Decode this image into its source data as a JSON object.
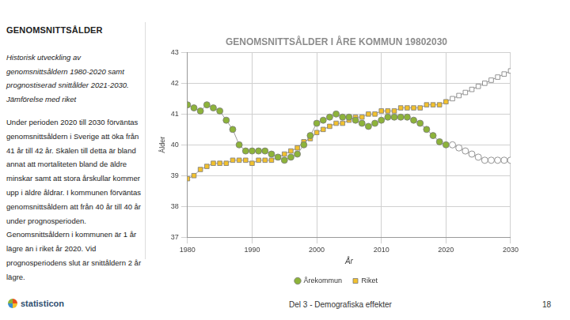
{
  "page": {
    "heading": "GENOMSNITTSÅLDER",
    "subtitle": "Historisk utveckling av genomsnittsåldern 1980-2020 samt prognostiserad snittålder 2021-2030. Jämförelse med riket",
    "body": "Under perioden 2020 till 2030 förväntas genomsnittsåldern i Sverige att öka från 41 år till 42 år. Skälen till detta är bland annat att mortaliteten bland de äldre minskar samt att stora årskullar kommer upp i äldre åldrar. I kommunen förväntas genomsnittsåldern att från 40 år till 40 år under prognosperioden. Genomsnittsåldern i kommunen är 1 år lägre än i riket år 2020. Vid prognosperiodens slut är snittåldern 2 år lägre.",
    "logo": "statisticon",
    "footer": "Del 3 - Demografiska effekter",
    "page_number": 18
  },
  "chart_data": {
    "type": "line",
    "title": "GENOMSNITTSÅLDER I ÅRE KOMMUN 19802030",
    "x_label": "År",
    "y_label": "Ålder",
    "x": [
      1980,
      1981,
      1982,
      1983,
      1984,
      1985,
      1986,
      1987,
      1988,
      1989,
      1990,
      1991,
      1992,
      1993,
      1994,
      1995,
      1996,
      1997,
      1998,
      1999,
      2000,
      2001,
      2002,
      2003,
      2004,
      2005,
      2006,
      2007,
      2008,
      2009,
      2010,
      2011,
      2012,
      2013,
      2014,
      2015,
      2016,
      2017,
      2018,
      2019,
      2020,
      2021,
      2022,
      2023,
      2024,
      2025,
      2026,
      2027,
      2028,
      2029,
      2030
    ],
    "series": [
      {
        "name": "Årekommun",
        "marker": "circle",
        "values": [
          41.3,
          41.2,
          41.1,
          41.3,
          41.2,
          41.1,
          40.8,
          40.5,
          40.0,
          39.8,
          39.8,
          39.8,
          39.8,
          39.7,
          39.6,
          39.5,
          39.6,
          39.7,
          40.0,
          40.3,
          40.7,
          40.8,
          40.9,
          41.0,
          40.9,
          40.9,
          40.8,
          40.7,
          40.6,
          40.7,
          40.8,
          40.9,
          40.9,
          40.9,
          40.9,
          40.8,
          40.7,
          40.5,
          40.3,
          40.1,
          40.0,
          40.0,
          39.9,
          39.8,
          39.7,
          39.6,
          39.5,
          39.5,
          39.5,
          39.5,
          39.5
        ],
        "colors": [
          "#8db33a",
          "#8db33a",
          "#8db33a",
          "#8db33a",
          "#8db33a",
          "#8db33a",
          "#8db33a",
          "#8db33a",
          "#8db33a",
          "#8db33a",
          "#8db33a",
          "#8db33a",
          "#8db33a",
          "#8db33a",
          "#8db33a",
          "#8db33a",
          "#8db33a",
          "#8db33a",
          "#8db33a",
          "#8db33a",
          "#8db33a",
          "#8db33a",
          "#8db33a",
          "#8db33a",
          "#8db33a",
          "#8db33a",
          "#8db33a",
          "#8db33a",
          "#8db33a",
          "#8db33a",
          "#8db33a",
          "#8db33a",
          "#8db33a",
          "#8db33a",
          "#8db33a",
          "#8db33a",
          "#8db33a",
          "#8db33a",
          "#8db33a",
          "#8db33a",
          "#8db33a",
          "#ffffff",
          "#ffffff",
          "#ffffff",
          "#ffffff",
          "#ffffff",
          "#ffffff",
          "#ffffff",
          "#ffffff",
          "#ffffff",
          "#ffffff"
        ]
      },
      {
        "name": "Riket",
        "marker": "square",
        "values": [
          38.9,
          39.0,
          39.2,
          39.3,
          39.4,
          39.4,
          39.4,
          39.5,
          39.5,
          39.5,
          39.4,
          39.5,
          39.5,
          39.5,
          39.6,
          39.7,
          39.8,
          39.9,
          40.1,
          40.2,
          40.4,
          40.5,
          40.6,
          40.7,
          40.7,
          40.8,
          40.9,
          40.9,
          41.0,
          41.0,
          41.1,
          41.1,
          41.1,
          41.2,
          41.2,
          41.2,
          41.2,
          41.3,
          41.3,
          41.3,
          41.4,
          41.5,
          41.6,
          41.7,
          41.8,
          41.9,
          42.0,
          42.1,
          42.2,
          42.3,
          42.4
        ],
        "colors": [
          "#f2c12e",
          "#f2c12e",
          "#f2c12e",
          "#f2c12e",
          "#f2c12e",
          "#f2c12e",
          "#f2c12e",
          "#f2c12e",
          "#f2c12e",
          "#f2c12e",
          "#f2c12e",
          "#f2c12e",
          "#f2c12e",
          "#f2c12e",
          "#f2c12e",
          "#f2c12e",
          "#f2c12e",
          "#f2c12e",
          "#f2c12e",
          "#f2c12e",
          "#f2c12e",
          "#f2c12e",
          "#f2c12e",
          "#f2c12e",
          "#f2c12e",
          "#f2c12e",
          "#f2c12e",
          "#f2c12e",
          "#f2c12e",
          "#f2c12e",
          "#f2c12e",
          "#f2c12e",
          "#f2c12e",
          "#f2c12e",
          "#f2c12e",
          "#f2c12e",
          "#f2c12e",
          "#f2c12e",
          "#f2c12e",
          "#f2c12e",
          "#f2c12e",
          "#ffffff",
          "#ffffff",
          "#ffffff",
          "#ffffff",
          "#ffffff",
          "#ffffff",
          "#ffffff",
          "#ffffff",
          "#ffffff",
          "#ffffff"
        ]
      }
    ],
    "xlim": [
      1980,
      2030
    ],
    "xticks": [
      1980,
      1990,
      2000,
      2010,
      2020,
      2030
    ],
    "ylim": [
      37,
      43
    ],
    "yticks": [
      37,
      38,
      39,
      40,
      41,
      42,
      43
    ],
    "grid": true,
    "legend": "bottom"
  }
}
